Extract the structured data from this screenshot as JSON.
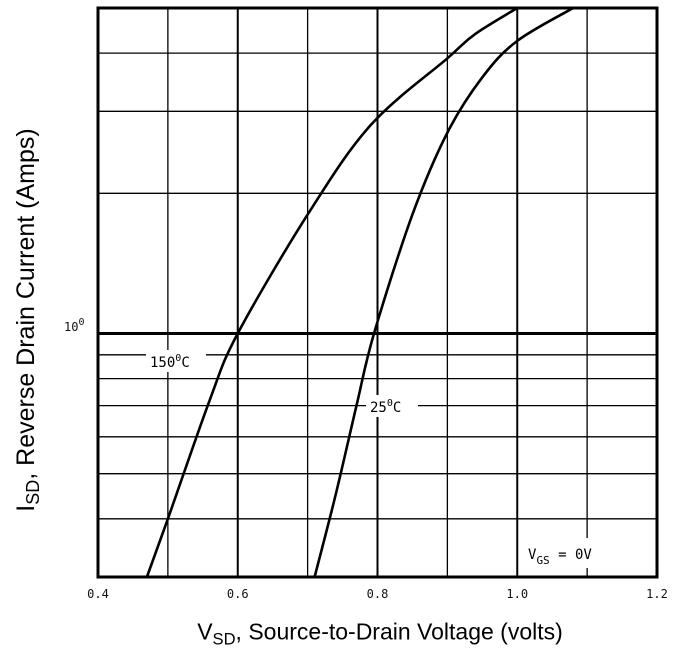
{
  "chart_data": {
    "type": "line",
    "title": "",
    "xlabel": {
      "main": "V",
      "sub": "SD",
      "rest": ", Source-to-Drain Voltage (volts)"
    },
    "ylabel": {
      "main": "I",
      "sub": "SD",
      "rest": ", Reverse Drain Current (Amps)"
    },
    "xlim": [
      0.4,
      1.2
    ],
    "x_ticks": [
      0.4,
      0.6,
      0.8,
      1.0,
      1.2
    ],
    "x_tick_labels": [
      "0.4",
      "0.6",
      "0.8",
      "1.0",
      "1.2"
    ],
    "y_scale": "log",
    "ylim": [
      0.3,
      5.0
    ],
    "y_tick_label": {
      "base": "10",
      "exp": "0",
      "value": 1
    },
    "grid": true,
    "annotation": {
      "main": "V",
      "sub": "GS",
      "rest": " = 0V"
    },
    "series": [
      {
        "name": "150°C",
        "label": {
          "main": "150",
          "sup": "0",
          "rest": "C"
        },
        "points": [
          [
            0.47,
            0.3
          ],
          [
            0.5,
            0.4
          ],
          [
            0.56,
            0.72
          ],
          [
            0.6,
            1.0
          ],
          [
            0.7,
            1.8
          ],
          [
            0.79,
            2.8
          ],
          [
            0.9,
            3.9
          ],
          [
            0.94,
            4.4
          ],
          [
            1.0,
            5.0
          ]
        ]
      },
      {
        "name": "25°C",
        "label": {
          "main": "25",
          "sup": "0",
          "rest": "C"
        },
        "points": [
          [
            0.71,
            0.3
          ],
          [
            0.74,
            0.45
          ],
          [
            0.77,
            0.7
          ],
          [
            0.795,
            1.0
          ],
          [
            0.85,
            1.8
          ],
          [
            0.9,
            2.7
          ],
          [
            0.95,
            3.55
          ],
          [
            1.0,
            4.25
          ],
          [
            1.08,
            5.0
          ]
        ]
      }
    ]
  }
}
